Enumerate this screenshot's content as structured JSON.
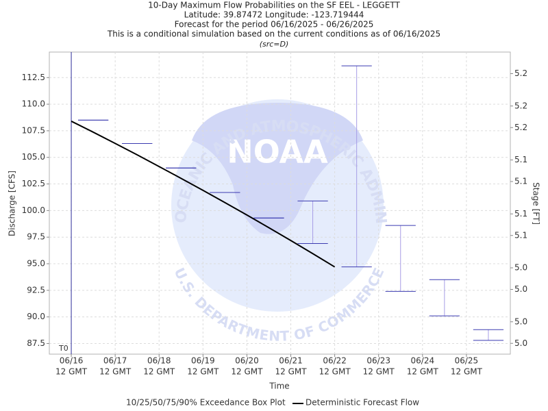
{
  "chart_data": {
    "type": "box",
    "title": "10-Day Maximum Flow Probabilities on the SF EEL - LEGGETT",
    "subtitle": [
      "Latitude: 39.87472 Longitude: -123.719444",
      "Forecast for the period 06/16/2025 - 06/26/2025",
      "This is a conditional simulation based on the current conditions as of 06/16/2025"
    ],
    "source": "(src=D)",
    "xlabel": "Time",
    "ylabel": "Discharge [CFS]",
    "y2label": "Stage [FT]",
    "xlim": [
      "2025-06-16T00:00:00Z",
      "2025-06-26T12:00:00Z"
    ],
    "xticks": [
      {
        "value": "2025-06-16T12:00:00Z",
        "label": [
          "06/16",
          "12 GMT"
        ]
      },
      {
        "value": "2025-06-17T12:00:00Z",
        "label": [
          "06/17",
          "12 GMT"
        ]
      },
      {
        "value": "2025-06-18T12:00:00Z",
        "label": [
          "06/18",
          "12 GMT"
        ]
      },
      {
        "value": "2025-06-19T12:00:00Z",
        "label": [
          "06/19",
          "12 GMT"
        ]
      },
      {
        "value": "2025-06-20T12:00:00Z",
        "label": [
          "06/20",
          "12 GMT"
        ]
      },
      {
        "value": "2025-06-21T12:00:00Z",
        "label": [
          "06/21",
          "12 GMT"
        ]
      },
      {
        "value": "2025-06-22T12:00:00Z",
        "label": [
          "06/22",
          "12 GMT"
        ]
      },
      {
        "value": "2025-06-23T12:00:00Z",
        "label": [
          "06/23",
          "12 GMT"
        ]
      },
      {
        "value": "2025-06-24T12:00:00Z",
        "label": [
          "06/24",
          "12 GMT"
        ]
      },
      {
        "value": "2025-06-25T12:00:00Z",
        "label": [
          "06/25",
          "12 GMT"
        ]
      }
    ],
    "ylim": [
      86.5,
      114.9
    ],
    "yticks": [
      87.5,
      {
        "value": 90,
        "label": "90.0"
      },
      92.5,
      {
        "value": 95,
        "label": "95.0"
      },
      97.5,
      {
        "value": 100,
        "label": "100.0"
      },
      102.5,
      {
        "value": 105,
        "label": "105.0"
      },
      107.5,
      {
        "value": 110,
        "label": "110.0"
      },
      112.5
    ],
    "y2lim": [
      4.96,
      5.24
    ],
    "y2ticks": [
      {
        "value": 4.97,
        "label": "5.0"
      },
      {
        "value": 4.99,
        "label": "5.0"
      },
      {
        "value": 5.02,
        "label": "5.0"
      },
      {
        "value": 5.04,
        "label": "5.0"
      },
      {
        "value": 5.07,
        "label": "5.1"
      },
      {
        "value": 5.09,
        "label": "5.1"
      },
      {
        "value": 5.12,
        "label": "5.1"
      },
      {
        "value": 5.14,
        "label": "5.1"
      },
      {
        "value": 5.17,
        "label": "5.2"
      },
      {
        "value": 5.19,
        "label": "5.2"
      },
      {
        "value": 5.22,
        "label": "5.2"
      }
    ],
    "grid": true,
    "marker": {
      "label": "T0",
      "x": "2025-06-16T12:00:00Z",
      "color": "#2b2b9a"
    },
    "series": [
      {
        "name": "10/25/50/75/90% Exceedance Box Plot",
        "type": "box",
        "color": "#3a3ab0",
        "whisker_color": "#a69ce6",
        "x": [
          "2025-06-17T00:00:00Z",
          "2025-06-18T00:00:00Z",
          "2025-06-19T00:00:00Z",
          "2025-06-20T00:00:00Z",
          "2025-06-21T00:00:00Z",
          "2025-06-22T00:00:00Z",
          "2025-06-23T00:00:00Z",
          "2025-06-24T00:00:00Z",
          "2025-06-25T00:00:00Z",
          "2025-06-26T00:00:00Z"
        ],
        "low": [
          108.5,
          106.3,
          104.0,
          101.7,
          99.3,
          96.9,
          94.7,
          92.4,
          90.1,
          87.8
        ],
        "high": [
          108.5,
          106.3,
          104.0,
          101.7,
          99.3,
          100.9,
          113.6,
          98.6,
          93.5,
          88.8
        ]
      },
      {
        "name": "Deterministic Forecast Flow",
        "type": "line",
        "color": "#000000",
        "x": [
          "2025-06-16T12:00:00Z",
          "2025-06-17T00:00:00Z",
          "2025-06-17T12:00:00Z",
          "2025-06-18T00:00:00Z",
          "2025-06-18T12:00:00Z",
          "2025-06-19T00:00:00Z",
          "2025-06-19T12:00:00Z",
          "2025-06-20T00:00:00Z",
          "2025-06-20T12:00:00Z",
          "2025-06-21T00:00:00Z",
          "2025-06-21T12:00:00Z",
          "2025-06-22T00:00:00Z",
          "2025-06-22T12:00:00Z"
        ],
        "values": [
          108.4,
          107.37,
          106.31,
          105.24,
          104.14,
          103.03,
          101.9,
          100.75,
          99.58,
          98.39,
          97.18,
          95.95,
          94.7
        ]
      }
    ],
    "watermark": {
      "logo": "NOAA",
      "ring_top": "NATIONAL OCEANIC AND ATMOSPHERIC ADMINISTRATION",
      "ring_bottom": "U.S. DEPARTMENT OF COMMERCE"
    }
  }
}
